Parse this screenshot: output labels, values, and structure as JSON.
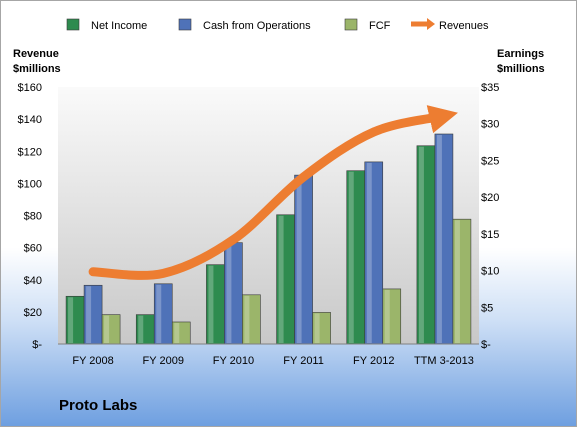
{
  "company": "Proto Labs",
  "chart_data": {
    "type": "bar",
    "categories": [
      "FY 2008",
      "FY 2009",
      "FY 2010",
      "FY 2011",
      "FY 2012",
      "TTM 3-2013"
    ],
    "series": [
      {
        "name": "Net Income",
        "axis": "right",
        "color": "#2e8b4f",
        "values": [
          6.5,
          4.0,
          10.8,
          17.6,
          23.6,
          27.0
        ]
      },
      {
        "name": "Cash from Operations",
        "axis": "right",
        "color": "#4f72b8",
        "values": [
          8.0,
          8.2,
          13.8,
          23.0,
          24.8,
          28.6
        ]
      },
      {
        "name": "FCF",
        "axis": "right",
        "color": "#9bb56a",
        "values": [
          4.0,
          3.0,
          6.7,
          4.3,
          7.5,
          17.0
        ]
      },
      {
        "name": "Revenues",
        "axis": "left",
        "type": "line",
        "color": "#ed7d31",
        "values": [
          45.0,
          44.0,
          65.0,
          104.0,
          132.0,
          142.0
        ]
      }
    ],
    "left_axis": {
      "title": [
        "Revenue",
        "$millions"
      ],
      "min": 0,
      "max": 160,
      "step": 20,
      "tick_labels": [
        "$-",
        "$20",
        "$40",
        "$60",
        "$80",
        "$100",
        "$120",
        "$140",
        "$160"
      ]
    },
    "right_axis": {
      "title": [
        "Earnings",
        "$millions"
      ],
      "min": 0,
      "max": 35,
      "step": 5,
      "tick_labels": [
        "$-",
        "$5",
        "$10",
        "$15",
        "$20",
        "$25",
        "$30",
        "$35"
      ]
    },
    "legend_position": "top",
    "grid": false
  }
}
